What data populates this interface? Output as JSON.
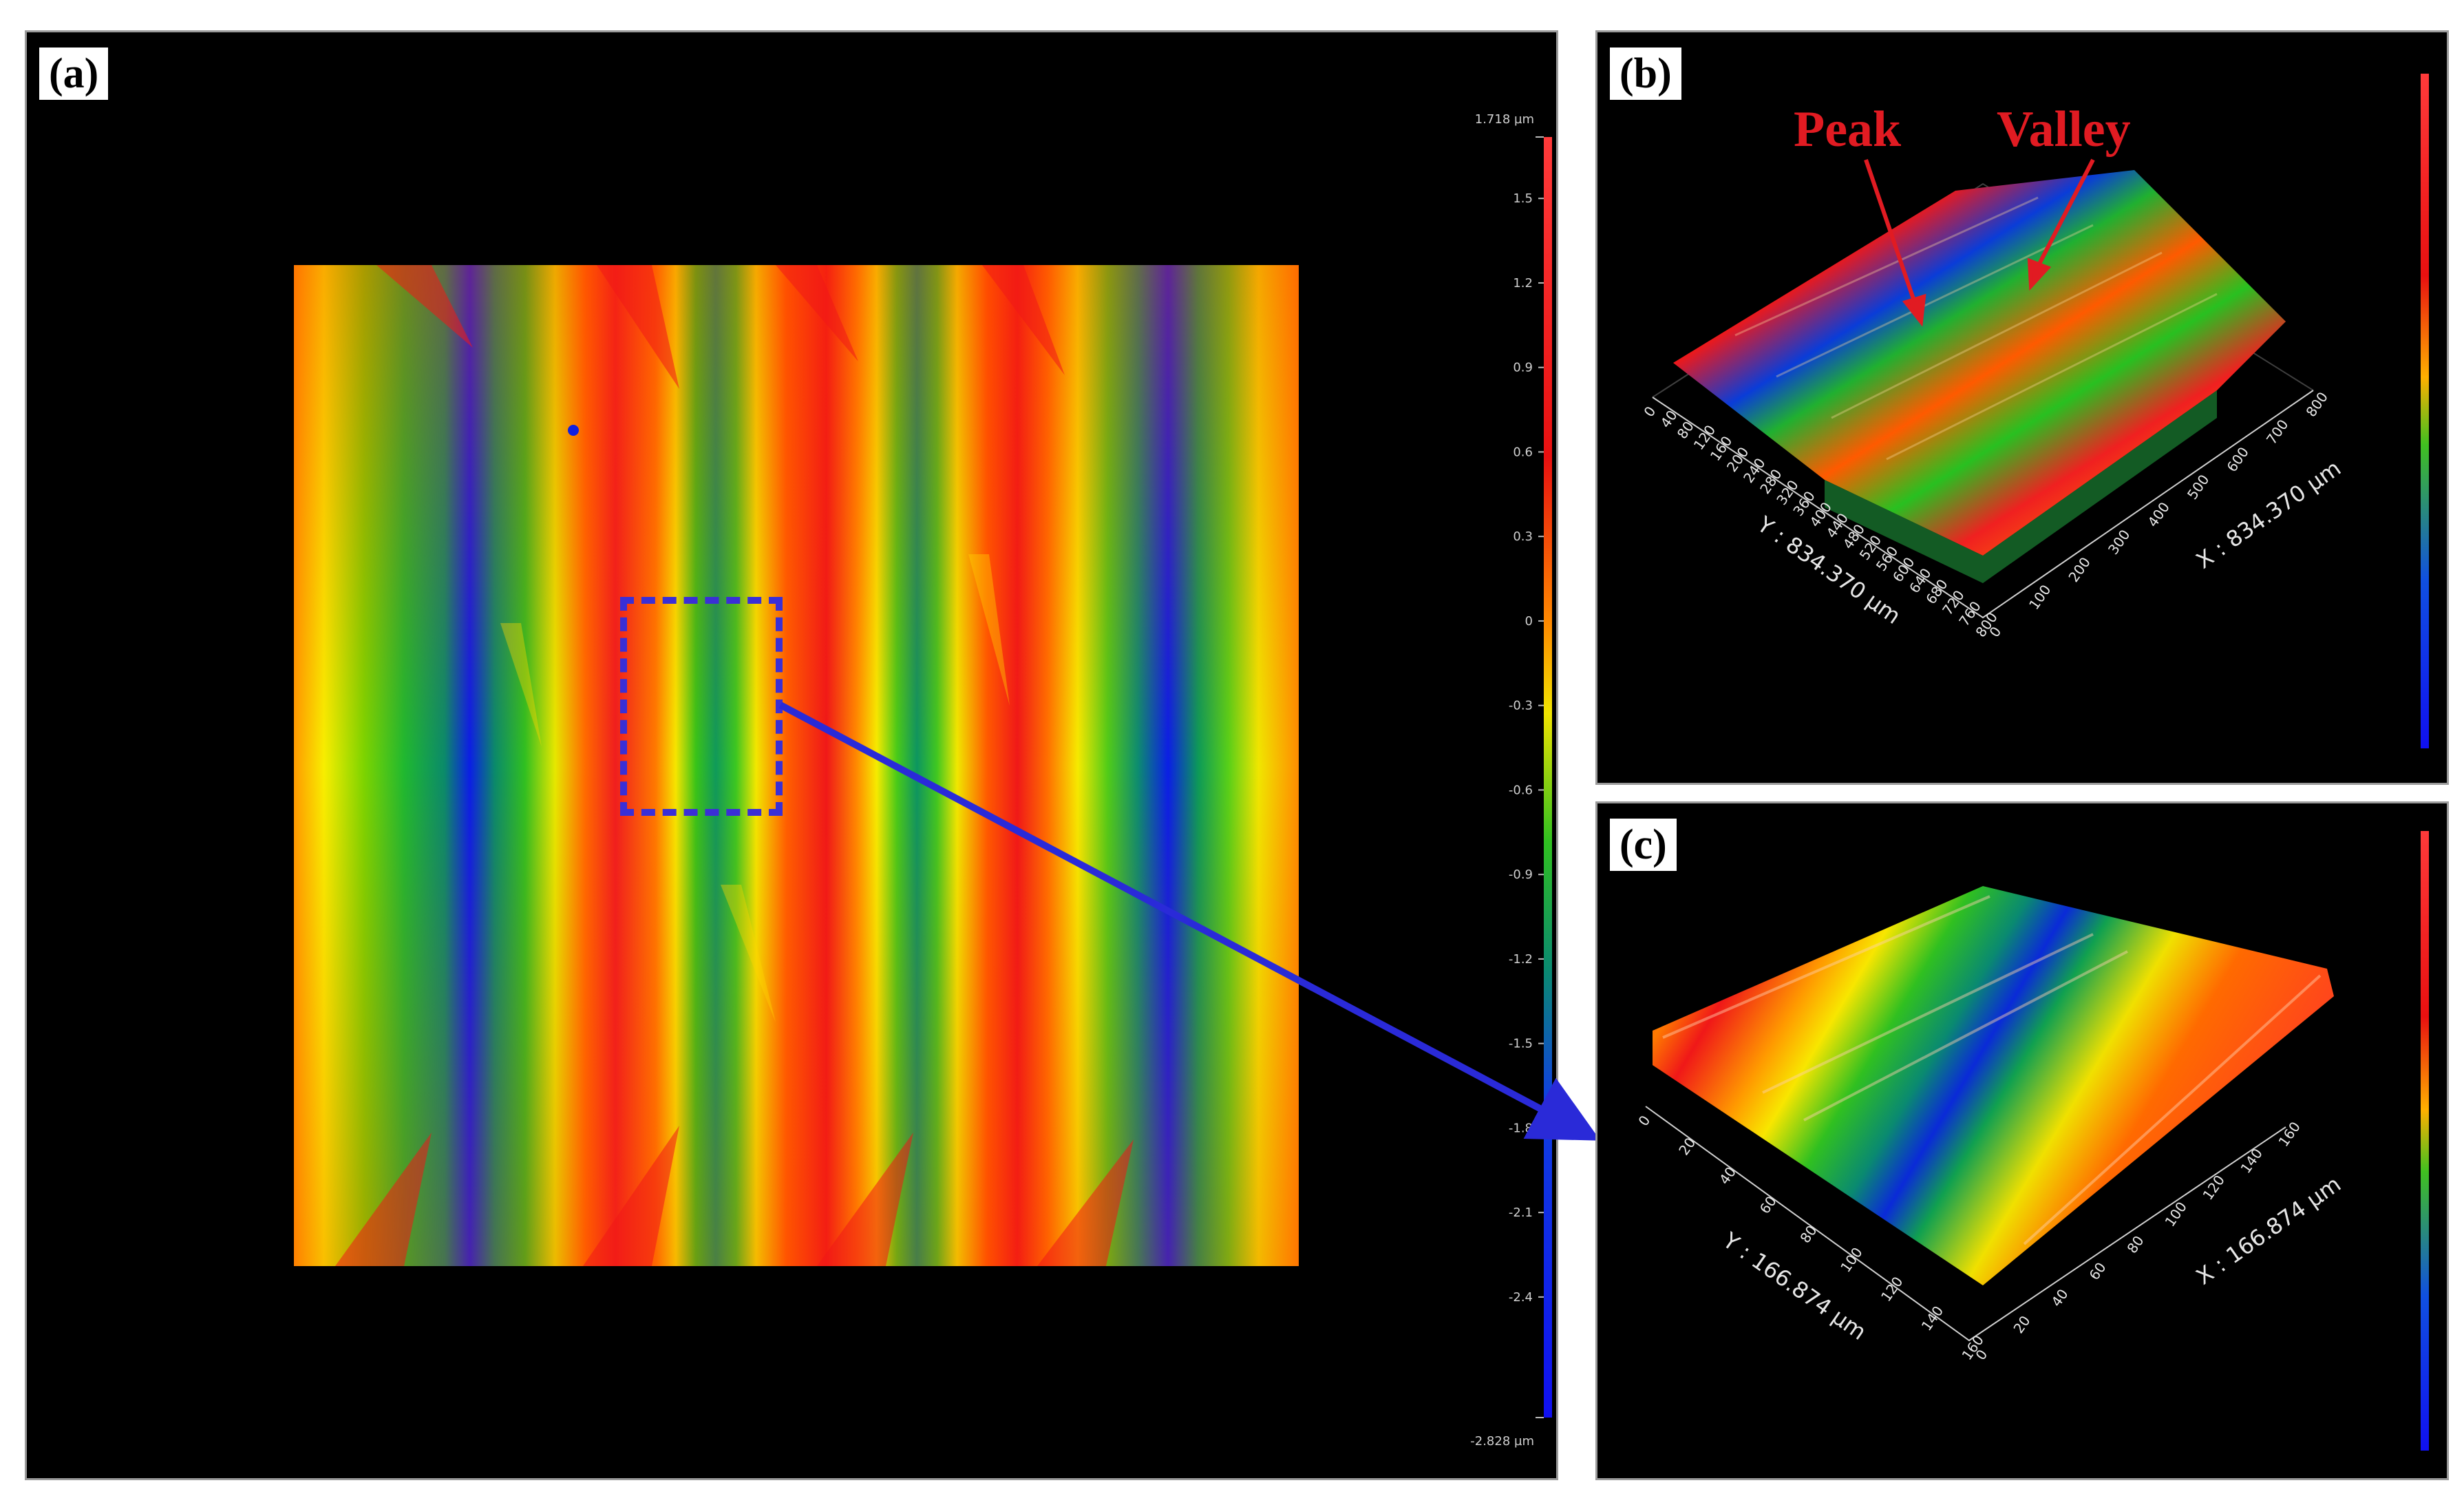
{
  "figure": {
    "panels": {
      "a": {
        "label": "(a)",
        "colorbar": {
          "max_label": "1.718 µm",
          "min_label": "-2.828 µm",
          "ticks": [
            "1.5",
            "1.2",
            "0.9",
            "0.6",
            "0.3",
            "0",
            "-0.3",
            "-0.6",
            "-0.9",
            "-1.2",
            "-1.5",
            "-1.8",
            "-2.1",
            "-2.4"
          ]
        }
      },
      "b": {
        "label": "(b)",
        "annotations": {
          "peak": "Peak",
          "valley": "Valley"
        },
        "y_axis_label": "Y : 834.370 µm",
        "x_axis_label": "X : 834.370 µm",
        "y_ticks": [
          "0",
          "40",
          "80",
          "120",
          "160",
          "200",
          "240",
          "280",
          "320",
          "360",
          "400",
          "440",
          "480",
          "520",
          "560",
          "600",
          "640",
          "680",
          "720",
          "760",
          "800"
        ],
        "x_ticks": [
          "0",
          "100",
          "200",
          "300",
          "400",
          "500",
          "600",
          "700",
          "800"
        ]
      },
      "c": {
        "label": "(c)",
        "y_axis_label": "Y : 166.874 µm",
        "x_axis_label": "X : 166.874 µm",
        "y_ticks": [
          "0",
          "20",
          "40",
          "60",
          "80",
          "100",
          "120",
          "140",
          "160"
        ],
        "x_ticks": [
          "0",
          "20",
          "40",
          "60",
          "80",
          "100",
          "120",
          "140",
          "160"
        ]
      }
    },
    "colors": {
      "selection_box": "#3a2fd6",
      "arrow": "#2a2ad8",
      "annotation": "#e11b22"
    }
  }
}
